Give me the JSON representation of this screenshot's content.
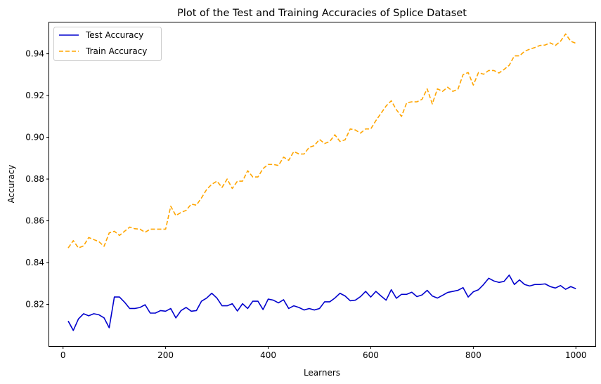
{
  "chart_data": {
    "type": "line",
    "title": "Plot of the Test and Training Accuracies of Splice Dataset",
    "xlabel": "Learners",
    "ylabel": "Accuracy",
    "xlim": [
      -27,
      1038
    ],
    "ylim": [
      0.8,
      0.955
    ],
    "xticks": [
      0,
      200,
      400,
      600,
      800,
      1000
    ],
    "yticks": [
      0.82,
      0.84,
      0.86,
      0.88,
      0.9,
      0.92,
      0.94
    ],
    "xtick_labels": [
      "0",
      "200",
      "400",
      "600",
      "800",
      "1000"
    ],
    "ytick_labels": [
      "0.82",
      "0.84",
      "0.86",
      "0.88",
      "0.90",
      "0.92",
      "0.94"
    ],
    "legend_position": "top-left",
    "grid": false,
    "x": [
      10,
      20,
      30,
      40,
      50,
      60,
      70,
      80,
      90,
      100,
      110,
      120,
      130,
      140,
      150,
      160,
      170,
      180,
      190,
      200,
      210,
      220,
      230,
      240,
      250,
      260,
      270,
      280,
      290,
      300,
      310,
      320,
      330,
      340,
      350,
      360,
      370,
      380,
      390,
      400,
      410,
      420,
      430,
      440,
      450,
      460,
      470,
      480,
      490,
      500,
      510,
      520,
      530,
      540,
      550,
      560,
      570,
      580,
      590,
      600,
      610,
      620,
      630,
      640,
      650,
      660,
      670,
      680,
      690,
      700,
      710,
      720,
      730,
      740,
      750,
      760,
      770,
      780,
      790,
      800,
      810,
      820,
      830,
      840,
      850,
      860,
      870,
      880,
      890,
      900,
      910,
      920,
      930,
      940,
      950,
      960,
      970,
      980,
      990,
      1000
    ],
    "series": [
      {
        "name": "Test Accuracy",
        "color": "#0000cd",
        "style": "solid",
        "values": [
          0.812,
          0.8075,
          0.813,
          0.8155,
          0.8145,
          0.8155,
          0.815,
          0.8135,
          0.8088,
          0.8235,
          0.8235,
          0.821,
          0.818,
          0.818,
          0.8185,
          0.8198,
          0.8158,
          0.8158,
          0.817,
          0.8167,
          0.818,
          0.8135,
          0.817,
          0.8185,
          0.8167,
          0.817,
          0.8215,
          0.823,
          0.8253,
          0.823,
          0.8193,
          0.8193,
          0.8203,
          0.8168,
          0.8203,
          0.818,
          0.8215,
          0.8215,
          0.8175,
          0.8225,
          0.822,
          0.8207,
          0.8222,
          0.818,
          0.8193,
          0.8185,
          0.8173,
          0.818,
          0.8173,
          0.818,
          0.8212,
          0.8212,
          0.823,
          0.8253,
          0.824,
          0.8217,
          0.822,
          0.8237,
          0.8262,
          0.8235,
          0.8262,
          0.824,
          0.822,
          0.827,
          0.8229,
          0.8248,
          0.8248,
          0.8258,
          0.8237,
          0.8245,
          0.8267,
          0.824,
          0.823,
          0.8243,
          0.8257,
          0.8262,
          0.8267,
          0.828,
          0.8235,
          0.826,
          0.827,
          0.8295,
          0.8325,
          0.8312,
          0.8305,
          0.831,
          0.834,
          0.8295,
          0.8317,
          0.8295,
          0.8288,
          0.8295,
          0.8295,
          0.8298,
          0.8285,
          0.8278,
          0.829,
          0.8272,
          0.8285,
          0.8275
        ]
      },
      {
        "name": "Train Accuracy",
        "color": "#ffa500",
        "style": "dashed",
        "values": [
          0.847,
          0.8505,
          0.847,
          0.848,
          0.852,
          0.851,
          0.85,
          0.8478,
          0.8542,
          0.855,
          0.853,
          0.855,
          0.857,
          0.8562,
          0.856,
          0.8545,
          0.856,
          0.856,
          0.856,
          0.856,
          0.867,
          0.8625,
          0.864,
          0.865,
          0.868,
          0.8675,
          0.871,
          0.875,
          0.8775,
          0.879,
          0.876,
          0.88,
          0.8755,
          0.879,
          0.879,
          0.884,
          0.881,
          0.881,
          0.885,
          0.887,
          0.887,
          0.8865,
          0.8905,
          0.889,
          0.8932,
          0.892,
          0.892,
          0.8952,
          0.896,
          0.899,
          0.897,
          0.898,
          0.9012,
          0.898,
          0.8988,
          0.904,
          0.9035,
          0.902,
          0.904,
          0.904,
          0.908,
          0.9115,
          0.915,
          0.9175,
          0.9132,
          0.91,
          0.9165,
          0.917,
          0.917,
          0.9182,
          0.9232,
          0.916,
          0.9232,
          0.922,
          0.924,
          0.922,
          0.923,
          0.93,
          0.931,
          0.925,
          0.931,
          0.9302,
          0.932,
          0.932,
          0.9308,
          0.9325,
          0.9345,
          0.939,
          0.939,
          0.9412,
          0.9422,
          0.943,
          0.944,
          0.9442,
          0.9452,
          0.944,
          0.946,
          0.9495,
          0.946,
          0.945
        ]
      }
    ]
  }
}
